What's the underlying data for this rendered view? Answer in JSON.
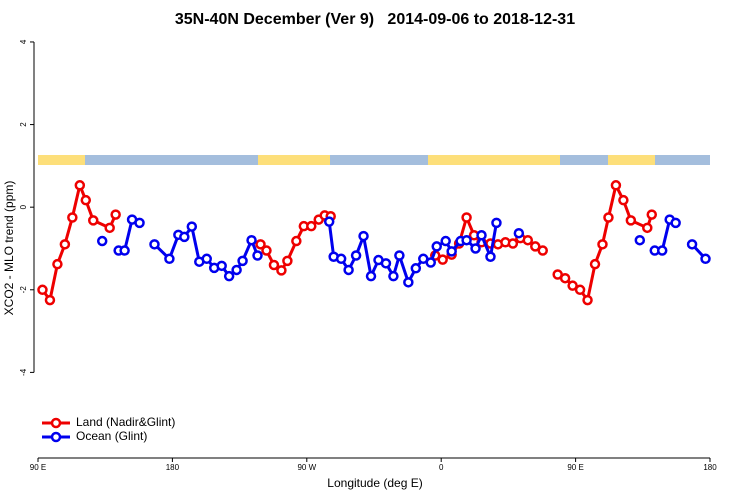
{
  "chart_data": {
    "type": "line",
    "title": "35N-40N December (Ver 9)   2014-09-06 to 2018-12-31",
    "xlabel": "Longitude (deg E)",
    "ylabel": "XCO2 - MLO trend (ppm)",
    "xlim": [
      90,
      540
    ],
    "ylim": [
      -6,
      4.2
    ],
    "xticks": [
      {
        "value": 90,
        "label": "90 E"
      },
      {
        "value": 180,
        "label": "180"
      },
      {
        "value": 270,
        "label": "90 W"
      },
      {
        "value": 360,
        "label": "0"
      },
      {
        "value": 450,
        "label": "90 E"
      },
      {
        "value": 540,
        "label": "180"
      }
    ],
    "yticks": [
      -4,
      -2,
      0,
      2,
      4
    ],
    "legend": "bottom-left",
    "series": [
      {
        "name": "Land (Nadir&Glint)",
        "color": "#ee0000",
        "x": [
          93,
          98,
          103,
          108,
          113,
          118,
          122,
          127,
          138,
          142,
          null,
          239,
          243,
          248,
          253,
          257,
          263,
          268,
          273,
          278,
          282,
          286,
          null,
          356,
          361,
          367,
          372,
          377,
          382,
          387,
          393,
          398,
          403,
          408,
          413,
          418,
          423,
          428,
          null,
          438,
          443,
          448,
          453,
          458,
          463,
          468,
          472,
          477,
          482,
          487,
          498,
          501
        ],
        "values": [
          -2.0,
          -2.25,
          -1.38,
          -0.9,
          -0.25,
          0.53,
          0.17,
          -0.32,
          -0.5,
          -0.18,
          null,
          -0.9,
          -1.05,
          -1.4,
          -1.53,
          -1.3,
          -0.82,
          -0.46,
          -0.46,
          -0.3,
          -0.2,
          -0.22,
          null,
          -1.17,
          -1.27,
          -1.15,
          -0.88,
          -0.25,
          -0.68,
          -0.85,
          -0.88,
          -0.9,
          -0.85,
          -0.88,
          -0.75,
          -0.8,
          -0.95,
          -1.05,
          null,
          -1.63,
          -1.72,
          -1.9,
          -2.0,
          -2.25,
          -1.38,
          -0.9,
          -0.25,
          0.53,
          0.17,
          -0.32,
          -0.5,
          -0.18
        ]
      },
      {
        "name": "Ocean (Glint)",
        "color": "#0000ee",
        "x": [
          133,
          null,
          144,
          148,
          153,
          158,
          null,
          168,
          178,
          184,
          188,
          193,
          198,
          203,
          208,
          213,
          218,
          223,
          227,
          233,
          237,
          null,
          285,
          288,
          293,
          298,
          303,
          308,
          313,
          318,
          323,
          328,
          332,
          338,
          343,
          348,
          353,
          357,
          363,
          367,
          373,
          377,
          383,
          387,
          393,
          397,
          null,
          412,
          null,
          493,
          null,
          503,
          508,
          513,
          517,
          null,
          528,
          537
        ],
        "values": [
          -0.82,
          null,
          -1.05,
          -1.05,
          -0.3,
          -0.38,
          null,
          -0.9,
          -1.25,
          -0.67,
          -0.72,
          -0.47,
          -1.32,
          -1.25,
          -1.47,
          -1.42,
          -1.67,
          -1.52,
          -1.3,
          -0.8,
          -1.17,
          null,
          -0.35,
          -1.2,
          -1.25,
          -1.52,
          -1.17,
          -0.7,
          -1.67,
          -1.28,
          -1.36,
          -1.67,
          -1.17,
          -1.82,
          -1.48,
          -1.25,
          -1.34,
          -0.95,
          -0.82,
          -1.07,
          -0.82,
          -0.8,
          -1.0,
          -0.68,
          -1.2,
          -0.38,
          null,
          -0.63,
          null,
          -0.8,
          null,
          -1.05,
          -1.05,
          -0.3,
          -0.38,
          null,
          -0.9,
          -1.25
        ]
      }
    ]
  }
}
